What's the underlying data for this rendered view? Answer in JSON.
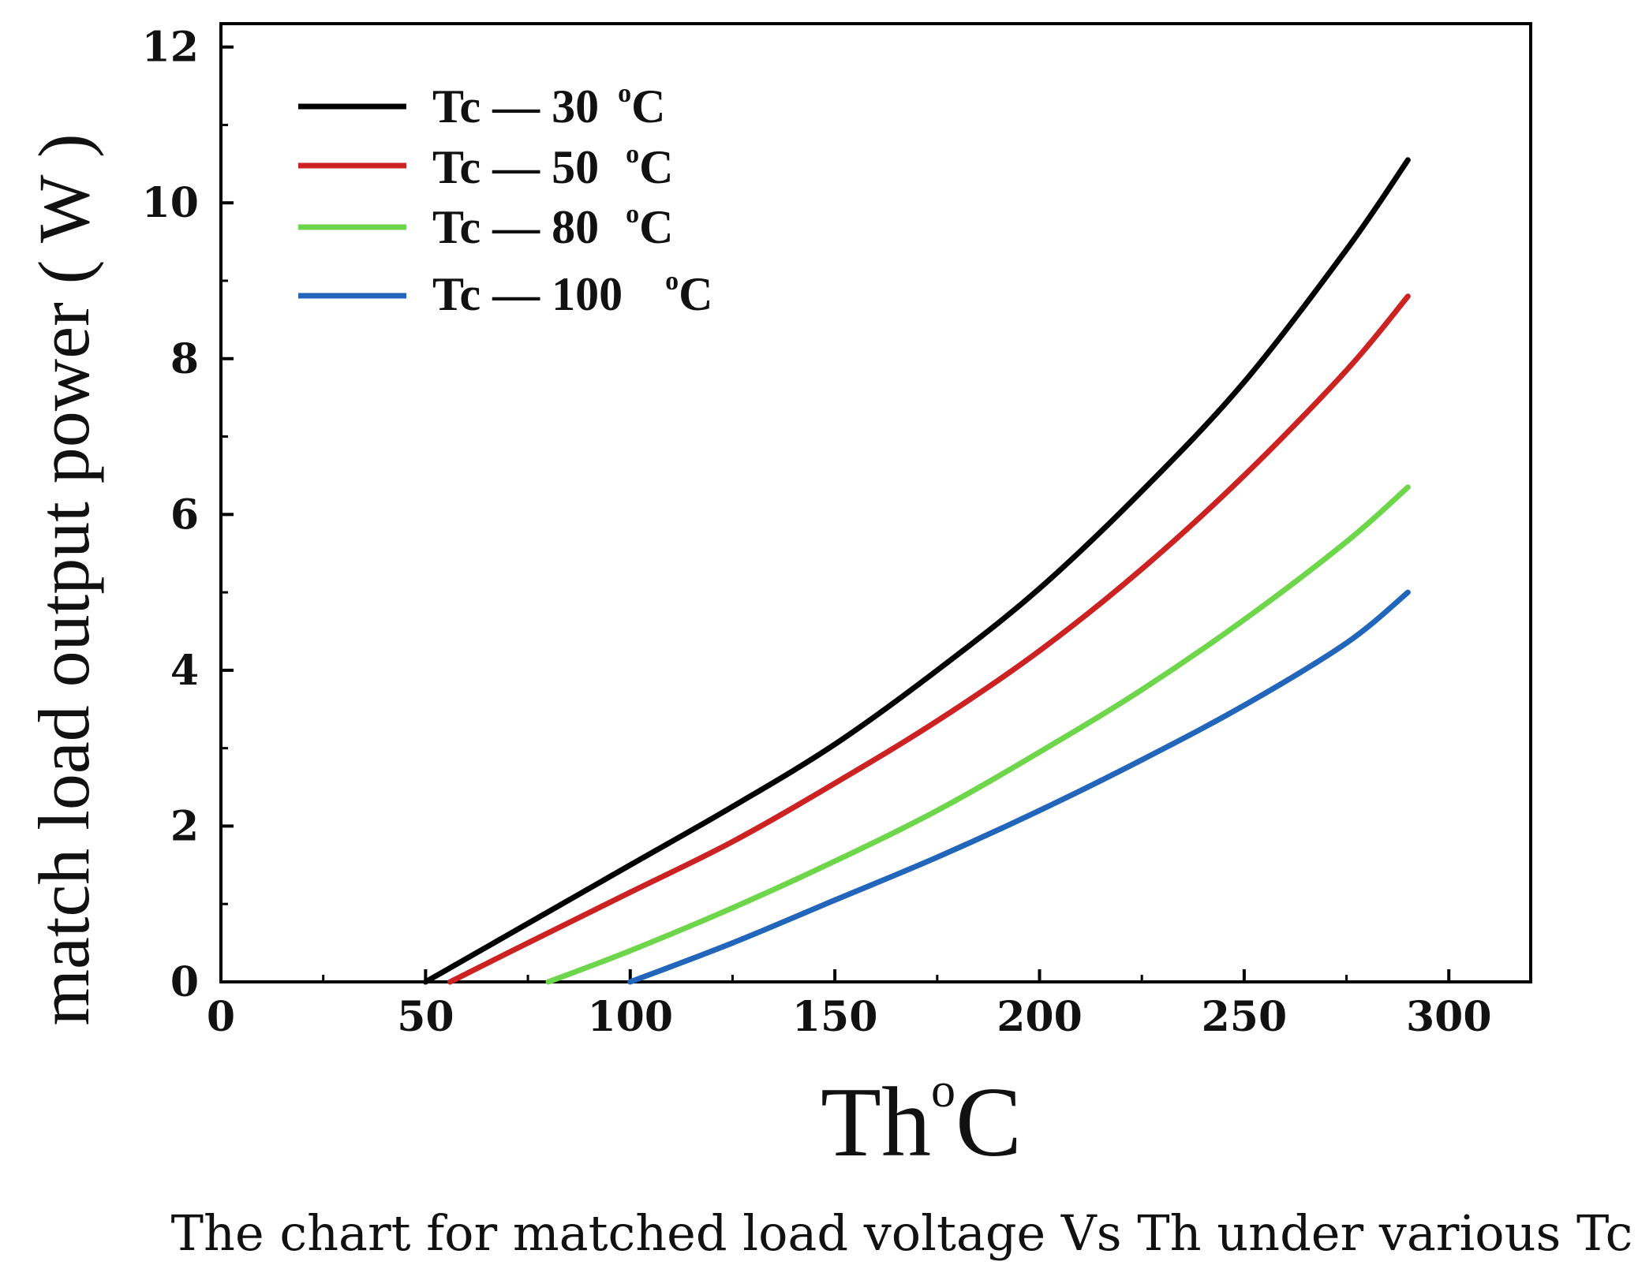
{
  "chart_data": {
    "type": "line",
    "title": "",
    "caption": "The chart for matched load voltage Vs Th under various Tc",
    "xlabel": {
      "main": "Th",
      "sup": "o",
      "unit": "C"
    },
    "ylabel": "match load output power ( W )",
    "xlim": [
      0,
      320
    ],
    "ylim": [
      0,
      12.3
    ],
    "xticks": [
      0,
      50,
      100,
      150,
      200,
      250,
      300
    ],
    "yticks": [
      0,
      2,
      4,
      6,
      8,
      10,
      12
    ],
    "xtick_labels": [
      "0",
      "50",
      "100",
      "150",
      "200",
      "250",
      "300"
    ],
    "ytick_labels": [
      "0",
      "2",
      "4",
      "6",
      "8",
      "10",
      "12"
    ],
    "legend_position": "top-left",
    "series": [
      {
        "name": "Tc = 30 oC",
        "legend": {
          "text": "Tc — 30",
          "sup": "o",
          "unit": "C"
        },
        "color": "#000000",
        "x": [
          50,
          75,
          100,
          125,
          150,
          175,
          200,
          225,
          250,
          275,
          290
        ],
        "y": [
          0,
          0.75,
          1.5,
          2.25,
          3.05,
          4.0,
          5.05,
          6.3,
          7.7,
          9.4,
          10.55
        ]
      },
      {
        "name": "Tc = 50 oC",
        "legend": {
          "text": "Tc — 50",
          "sup": "o",
          "unit": "C"
        },
        "color": "#cc2222",
        "x": [
          56,
          75,
          100,
          125,
          150,
          175,
          200,
          225,
          250,
          275,
          290
        ],
        "y": [
          0,
          0.5,
          1.15,
          1.8,
          2.55,
          3.35,
          4.25,
          5.3,
          6.5,
          7.85,
          8.8
        ]
      },
      {
        "name": "Tc = 80 oC",
        "legend": {
          "text": "Tc — 80",
          "sup": "o",
          "unit": "C"
        },
        "color": "#6ed64a",
        "x": [
          80,
          100,
          125,
          150,
          175,
          200,
          225,
          250,
          275,
          290
        ],
        "y": [
          0,
          0.4,
          0.95,
          1.55,
          2.2,
          2.95,
          3.75,
          4.65,
          5.65,
          6.35
        ]
      },
      {
        "name": "Tc = 100 oC",
        "legend": {
          "text": "Tc — 100",
          "sup": "o",
          "unit": "C"
        },
        "color": "#2266bb",
        "x": [
          100,
          125,
          150,
          175,
          200,
          225,
          250,
          275,
          290
        ],
        "y": [
          0,
          0.5,
          1.05,
          1.6,
          2.2,
          2.85,
          3.55,
          4.35,
          5.0
        ]
      }
    ]
  }
}
